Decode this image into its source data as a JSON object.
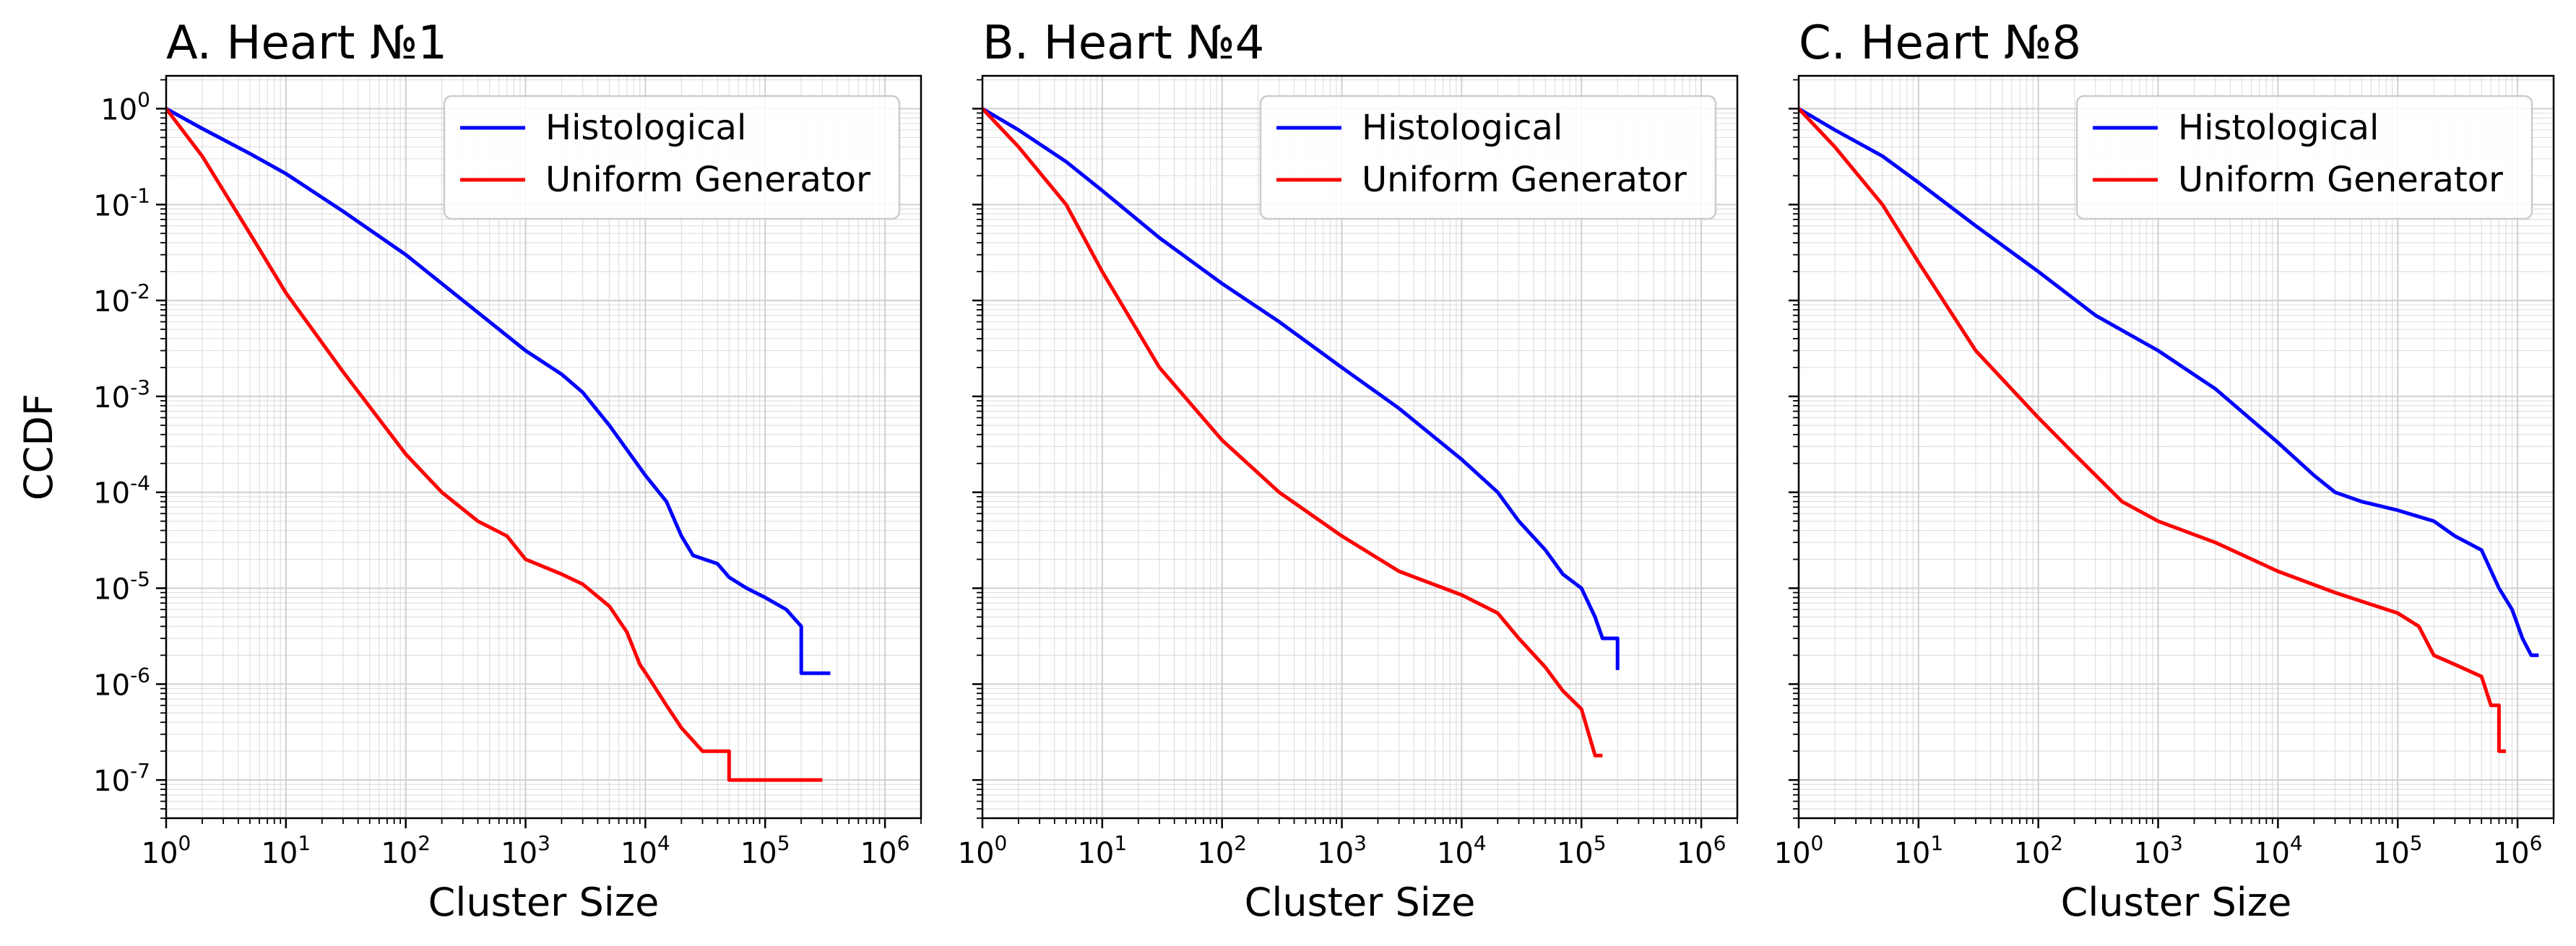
{
  "figure": {
    "ylabel_shared": "CCDF"
  },
  "colors": {
    "histological": "#0000ff",
    "uniform": "#ff0000",
    "grid": "#cccccc",
    "frame": "#000000"
  },
  "chart_data": [
    {
      "type": "line",
      "title": "A. Heart №1",
      "xlabel": "Cluster Size",
      "ylabel": "CCDF",
      "xscale": "log",
      "yscale": "log",
      "xlim": [
        1,
        2000000
      ],
      "ylim": [
        4e-08,
        2.2
      ],
      "xticks": [
        1,
        10,
        100,
        1000,
        10000,
        100000,
        1000000
      ],
      "yticks": [
        1,
        0.1,
        0.01,
        0.001,
        0.0001,
        1e-05,
        1e-06,
        1e-07
      ],
      "grid": true,
      "legend": "upper right",
      "series": [
        {
          "name": "Histological",
          "color": "#0000ff",
          "step": false,
          "points": [
            [
              1,
              1
            ],
            [
              2,
              0.62
            ],
            [
              5,
              0.34
            ],
            [
              10,
              0.21
            ],
            [
              30,
              0.085
            ],
            [
              100,
              0.03
            ],
            [
              300,
              0.01
            ],
            [
              1000,
              0.003
            ],
            [
              2000,
              0.0017
            ],
            [
              3000,
              0.0011
            ],
            [
              5000,
              0.0005
            ],
            [
              10000,
              0.00015
            ],
            [
              15000,
              8e-05
            ],
            [
              20000,
              3.5e-05
            ],
            [
              25000,
              2.2e-05
            ],
            [
              40000,
              1.8e-05
            ],
            [
              50000,
              1.3e-05
            ],
            [
              70000,
              1e-05
            ],
            [
              100000,
              8e-06
            ],
            [
              150000,
              6e-06
            ],
            [
              200000,
              4e-06
            ],
            [
              200001,
              1.3e-06
            ],
            [
              350000,
              1.3e-06
            ]
          ]
        },
        {
          "name": "Uniform Generator",
          "color": "#ff0000",
          "step": false,
          "points": [
            [
              1,
              1
            ],
            [
              2,
              0.32
            ],
            [
              5,
              0.05
            ],
            [
              10,
              0.012
            ],
            [
              30,
              0.0018
            ],
            [
              100,
              0.00025
            ],
            [
              200,
              0.0001
            ],
            [
              400,
              5e-05
            ],
            [
              700,
              3.5e-05
            ],
            [
              1000,
              2e-05
            ],
            [
              2000,
              1.4e-05
            ],
            [
              3000,
              1.1e-05
            ],
            [
              5000,
              6.5e-06
            ],
            [
              7000,
              3.5e-06
            ],
            [
              9000,
              1.6e-06
            ],
            [
              11000,
              1.1e-06
            ],
            [
              15000,
              6e-07
            ],
            [
              20000,
              3.5e-07
            ],
            [
              30000,
              2e-07
            ],
            [
              50000,
              2e-07
            ],
            [
              50001,
              1e-07
            ],
            [
              300000,
              1e-07
            ]
          ]
        }
      ]
    },
    {
      "type": "line",
      "title": "B. Heart №4",
      "xlabel": "Cluster Size",
      "ylabel": "",
      "xscale": "log",
      "yscale": "log",
      "xlim": [
        1,
        2000000
      ],
      "ylim": [
        4e-08,
        2.2
      ],
      "xticks": [
        1,
        10,
        100,
        1000,
        10000,
        100000,
        1000000
      ],
      "yticks": [
        1,
        0.1,
        0.01,
        0.001,
        0.0001,
        1e-05,
        1e-06,
        1e-07
      ],
      "grid": true,
      "legend": "upper right",
      "series": [
        {
          "name": "Histological",
          "color": "#0000ff",
          "step": false,
          "points": [
            [
              1,
              1
            ],
            [
              2,
              0.6
            ],
            [
              5,
              0.28
            ],
            [
              10,
              0.14
            ],
            [
              30,
              0.045
            ],
            [
              100,
              0.015
            ],
            [
              300,
              0.006
            ],
            [
              1000,
              0.002
            ],
            [
              3000,
              0.00075
            ],
            [
              10000,
              0.00022
            ],
            [
              20000,
              0.0001
            ],
            [
              30000,
              5e-05
            ],
            [
              50000,
              2.5e-05
            ],
            [
              70000,
              1.4e-05
            ],
            [
              100000,
              1e-05
            ],
            [
              130000,
              5e-06
            ],
            [
              150000,
              3e-06
            ],
            [
              200000,
              3e-06
            ],
            [
              200001,
              1.4e-06
            ]
          ]
        },
        {
          "name": "Uniform Generator",
          "color": "#ff0000",
          "step": false,
          "points": [
            [
              1,
              1
            ],
            [
              2,
              0.4
            ],
            [
              5,
              0.1
            ],
            [
              10,
              0.02
            ],
            [
              30,
              0.002
            ],
            [
              100,
              0.00035
            ],
            [
              300,
              0.0001
            ],
            [
              1000,
              3.5e-05
            ],
            [
              3000,
              1.5e-05
            ],
            [
              10000,
              8.5e-06
            ],
            [
              20000,
              5.5e-06
            ],
            [
              30000,
              3e-06
            ],
            [
              50000,
              1.5e-06
            ],
            [
              70000,
              8.5e-07
            ],
            [
              100000,
              5.5e-07
            ],
            [
              130000,
              1.8e-07
            ],
            [
              150000,
              1.8e-07
            ]
          ]
        }
      ]
    },
    {
      "type": "line",
      "title": "C. Heart №8",
      "xlabel": "Cluster Size",
      "ylabel": "",
      "xscale": "log",
      "yscale": "log",
      "xlim": [
        1,
        2000000
      ],
      "ylim": [
        4e-08,
        2.2
      ],
      "xticks": [
        1,
        10,
        100,
        1000,
        10000,
        100000,
        1000000
      ],
      "yticks": [
        1,
        0.1,
        0.01,
        0.001,
        0.0001,
        1e-05,
        1e-06,
        1e-07
      ],
      "grid": true,
      "legend": "upper right",
      "series": [
        {
          "name": "Histological",
          "color": "#0000ff",
          "step": false,
          "points": [
            [
              1,
              1
            ],
            [
              2,
              0.6
            ],
            [
              5,
              0.32
            ],
            [
              10,
              0.17
            ],
            [
              30,
              0.06
            ],
            [
              100,
              0.02
            ],
            [
              300,
              0.007
            ],
            [
              1000,
              0.003
            ],
            [
              3000,
              0.0012
            ],
            [
              10000,
              0.00033
            ],
            [
              20000,
              0.00015
            ],
            [
              30000,
              0.0001
            ],
            [
              50000,
              8e-05
            ],
            [
              100000,
              6.5e-05
            ],
            [
              200000,
              5e-05
            ],
            [
              300000,
              3.5e-05
            ],
            [
              500000,
              2.5e-05
            ],
            [
              700000,
              1e-05
            ],
            [
              900000,
              6e-06
            ],
            [
              1100000,
              3e-06
            ],
            [
              1300000,
              2e-06
            ],
            [
              1500000,
              2e-06
            ]
          ]
        },
        {
          "name": "Uniform Generator",
          "color": "#ff0000",
          "step": false,
          "points": [
            [
              1,
              1
            ],
            [
              2,
              0.4
            ],
            [
              5,
              0.1
            ],
            [
              10,
              0.025
            ],
            [
              30,
              0.003
            ],
            [
              100,
              0.0006
            ],
            [
              200,
              0.00025
            ],
            [
              500,
              8e-05
            ],
            [
              1000,
              5e-05
            ],
            [
              3000,
              3e-05
            ],
            [
              10000,
              1.5e-05
            ],
            [
              30000,
              9e-06
            ],
            [
              100000,
              5.5e-06
            ],
            [
              150000,
              4e-06
            ],
            [
              200000,
              2e-06
            ],
            [
              300000,
              1.6e-06
            ],
            [
              500000,
              1.2e-06
            ],
            [
              600000,
              6e-07
            ],
            [
              700000,
              6e-07
            ],
            [
              700001,
              2e-07
            ],
            [
              800000,
              2e-07
            ]
          ]
        }
      ]
    }
  ]
}
